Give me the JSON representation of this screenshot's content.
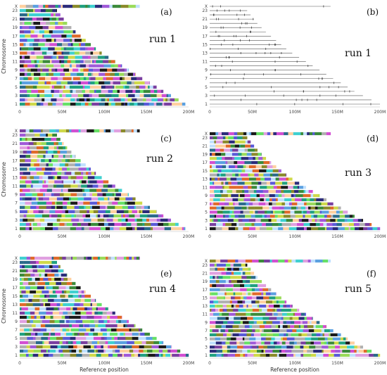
{
  "chart_data": [
    {
      "type": "bar",
      "panel": "(a)",
      "title": "run 1",
      "style": "mosaic",
      "ylabel": "Chromosome",
      "xlabel": "",
      "ytick_labels": [
        "1",
        "3",
        "5",
        "7",
        "9",
        "11",
        "13",
        "15",
        "17",
        "19",
        "21",
        "23",
        "X"
      ],
      "xticks": [
        "0",
        "50M",
        "100M",
        "150M",
        "200M"
      ],
      "xlim": [
        0,
        200000000
      ],
      "categories": [
        "1",
        "2",
        "3",
        "4",
        "5",
        "6",
        "7",
        "8",
        "9",
        "10",
        "11",
        "12",
        "13",
        "14",
        "15",
        "16",
        "17",
        "18",
        "19",
        "20",
        "21",
        "22",
        "23",
        "X"
      ],
      "values": [
        196000000,
        188000000,
        179000000,
        170000000,
        162000000,
        154000000,
        145000000,
        137000000,
        129000000,
        121000000,
        113000000,
        105000000,
        97000000,
        90000000,
        84000000,
        78000000,
        72000000,
        66000000,
        61000000,
        56000000,
        52000000,
        48000000,
        44000000,
        142000000
      ]
    },
    {
      "type": "bar",
      "panel": "(b)",
      "title": "run 1",
      "style": "sparse",
      "ylabel": "",
      "xlabel": "",
      "ytick_labels": [
        "1",
        "3",
        "5",
        "7",
        "9",
        "11",
        "13",
        "15",
        "17",
        "19",
        "21",
        "23",
        "X"
      ],
      "xticks": [
        "0",
        "50M",
        "100M",
        "150M",
        "200M"
      ],
      "xlim": [
        0,
        200000000
      ],
      "categories": [
        "1",
        "2",
        "3",
        "4",
        "5",
        "6",
        "7",
        "8",
        "9",
        "10",
        "11",
        "12",
        "13",
        "14",
        "15",
        "16",
        "17",
        "18",
        "19",
        "20",
        "21",
        "22",
        "23",
        "X"
      ],
      "values": [
        200000000,
        190000000,
        180000000,
        170000000,
        162000000,
        154000000,
        145000000,
        137000000,
        129000000,
        121000000,
        113000000,
        105000000,
        97000000,
        90000000,
        84000000,
        78000000,
        72000000,
        66000000,
        61000000,
        56000000,
        52000000,
        48000000,
        44000000,
        142000000
      ]
    },
    {
      "type": "bar",
      "panel": "(c)",
      "title": "run 2",
      "style": "mosaic",
      "ylabel": "Chromosome",
      "xlabel": "",
      "ytick_labels": [
        "1",
        "3",
        "5",
        "7",
        "9",
        "11",
        "13",
        "15",
        "17",
        "19",
        "21",
        "23",
        "X"
      ],
      "xticks": [
        "0",
        "50M",
        "100M",
        "150M",
        "200M"
      ],
      "xlim": [
        0,
        200000000
      ],
      "categories": [
        "1",
        "2",
        "3",
        "4",
        "5",
        "6",
        "7",
        "8",
        "9",
        "10",
        "11",
        "12",
        "13",
        "14",
        "15",
        "16",
        "17",
        "18",
        "19",
        "20",
        "21",
        "22",
        "23",
        "X"
      ],
      "values": [
        196000000,
        188000000,
        179000000,
        170000000,
        162000000,
        154000000,
        145000000,
        137000000,
        129000000,
        121000000,
        113000000,
        105000000,
        97000000,
        90000000,
        84000000,
        78000000,
        72000000,
        66000000,
        61000000,
        56000000,
        52000000,
        48000000,
        44000000,
        142000000
      ]
    },
    {
      "type": "bar",
      "panel": "(d)",
      "title": "run 3",
      "style": "mosaic",
      "ylabel": "",
      "xlabel": "",
      "ytick_labels": [
        "1",
        "3",
        "5",
        "7",
        "9",
        "11",
        "13",
        "15",
        "17",
        "19",
        "21",
        "23",
        "X"
      ],
      "xticks": [
        "0",
        "50M",
        "100M",
        "150M",
        "200M"
      ],
      "xlim": [
        0,
        200000000
      ],
      "categories": [
        "1",
        "2",
        "3",
        "4",
        "5",
        "6",
        "7",
        "8",
        "9",
        "10",
        "11",
        "12",
        "13",
        "14",
        "15",
        "16",
        "17",
        "18",
        "19",
        "20",
        "21",
        "22",
        "23",
        "X"
      ],
      "values": [
        200000000,
        190000000,
        180000000,
        170000000,
        162000000,
        154000000,
        145000000,
        137000000,
        129000000,
        121000000,
        113000000,
        105000000,
        97000000,
        90000000,
        84000000,
        78000000,
        72000000,
        66000000,
        61000000,
        56000000,
        52000000,
        48000000,
        44000000,
        142000000
      ]
    },
    {
      "type": "bar",
      "panel": "(e)",
      "title": "run 4",
      "style": "mosaic",
      "ylabel": "Chromosome",
      "xlabel": "Reference position",
      "ytick_labels": [
        "1",
        "3",
        "5",
        "7",
        "9",
        "11",
        "13",
        "15",
        "17",
        "19",
        "21",
        "23",
        "X"
      ],
      "xticks": [
        "0",
        "50M",
        "100M",
        "150M",
        "200M"
      ],
      "xlim": [
        0,
        200000000
      ],
      "categories": [
        "1",
        "2",
        "3",
        "4",
        "5",
        "6",
        "7",
        "8",
        "9",
        "10",
        "11",
        "12",
        "13",
        "14",
        "15",
        "16",
        "17",
        "18",
        "19",
        "20",
        "21",
        "22",
        "23",
        "X"
      ],
      "values": [
        200000000,
        190000000,
        180000000,
        170000000,
        162000000,
        154000000,
        145000000,
        137000000,
        129000000,
        121000000,
        113000000,
        105000000,
        97000000,
        90000000,
        84000000,
        78000000,
        72000000,
        66000000,
        61000000,
        56000000,
        52000000,
        48000000,
        44000000,
        142000000
      ]
    },
    {
      "type": "bar",
      "panel": "(f)",
      "title": "run 5",
      "style": "mosaic",
      "ylabel": "",
      "xlabel": "Reference position",
      "ytick_labels": [
        "1",
        "3",
        "5",
        "7",
        "9",
        "11",
        "13",
        "15",
        "17",
        "19",
        "21",
        "23",
        "X"
      ],
      "xticks": [
        "0",
        "50M",
        "100M",
        "150M",
        "200M"
      ],
      "xlim": [
        0,
        200000000
      ],
      "categories": [
        "1",
        "2",
        "3",
        "4",
        "5",
        "6",
        "7",
        "8",
        "9",
        "10",
        "11",
        "12",
        "13",
        "14",
        "15",
        "16",
        "17",
        "18",
        "19",
        "20",
        "21",
        "22",
        "23",
        "X"
      ],
      "values": [
        200000000,
        190000000,
        180000000,
        170000000,
        162000000,
        154000000,
        145000000,
        137000000,
        129000000,
        121000000,
        113000000,
        105000000,
        97000000,
        90000000,
        84000000,
        78000000,
        72000000,
        66000000,
        61000000,
        56000000,
        52000000,
        48000000,
        44000000,
        142000000
      ]
    }
  ],
  "colors": {
    "palette": [
      "#5a5ad8",
      "#3fd0d0",
      "#7a3fa0",
      "#9adb5a",
      "#d24fd2",
      "#2b2b7a",
      "#cfd94a",
      "#1a1a1a",
      "#66e066",
      "#b0b0b0",
      "#e0a0e0",
      "#3a8a3a",
      "#5aa0e0",
      "#e06a2a",
      "#8a8a2a",
      "#2a6a8a",
      "#c0e0ff",
      "#a05ad8",
      "#ffd0a0",
      "#20a080"
    ],
    "sparse_line": "#555555",
    "axis": "#bbbbbb"
  }
}
